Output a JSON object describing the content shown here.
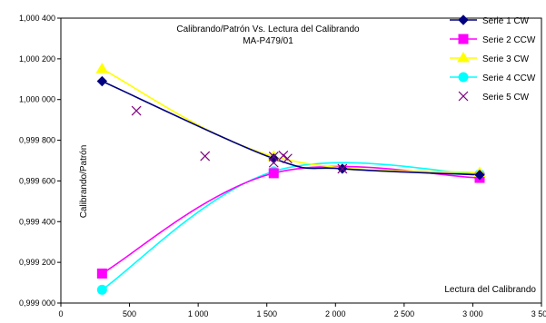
{
  "chart_data": {
    "type": "line",
    "title": "Calibrando/Patrón Vs. Lectura del Calibrando",
    "subtitle": "MA-P479/01",
    "xlabel": "Lectura del Calibrando",
    "ylabel": "Calibrando/Patrón",
    "xlim": [
      0,
      3500
    ],
    "ylim": [
      0.999,
      1.0004
    ],
    "xticks": [
      "0",
      "500",
      "1 000",
      "1 500",
      "2 000",
      "2 500",
      "3 000",
      "3 500"
    ],
    "yticks": [
      "0,999 000",
      "0,999 200",
      "0,999 400",
      "0,999 600",
      "0,999 800",
      "1,000 000",
      "1,000 200",
      "1,000 400"
    ],
    "grid": "none",
    "legend_position": "top-right",
    "series": [
      {
        "name": "Serie 1 CW",
        "color": "#000080",
        "marker": "diamond",
        "points": [
          [
            300,
            1.00009
          ],
          [
            1550,
            0.99971
          ],
          [
            2050,
            0.99966
          ],
          [
            3050,
            0.99963
          ]
        ]
      },
      {
        "name": "Serie 2 CCW",
        "color": "#ff00ff",
        "marker": "square",
        "points": [
          [
            300,
            0.999145
          ],
          [
            1550,
            0.999638
          ],
          [
            3050,
            0.999615
          ]
        ]
      },
      {
        "name": "Serie 3 CW",
        "color": "#ffff00",
        "marker": "triangle",
        "points": [
          [
            300,
            1.00015
          ],
          [
            1550,
            0.99972
          ],
          [
            3050,
            0.99964
          ]
        ]
      },
      {
        "name": "Serie 4 CCW",
        "color": "#00ffff",
        "marker": "circle",
        "points": [
          [
            300,
            0.999065
          ],
          [
            1550,
            0.999647
          ],
          [
            3050,
            0.999633
          ]
        ]
      },
      {
        "name": "Serie 5 CW",
        "color": "#800080",
        "marker": "x",
        "line": false,
        "points": [
          [
            550,
            0.999945
          ],
          [
            1050,
            0.999722
          ],
          [
            1550,
            0.99969
          ],
          [
            1550,
            0.99972
          ],
          [
            1620,
            0.999725
          ],
          [
            1650,
            0.99971
          ],
          [
            2050,
            0.99966
          ]
        ]
      }
    ]
  }
}
